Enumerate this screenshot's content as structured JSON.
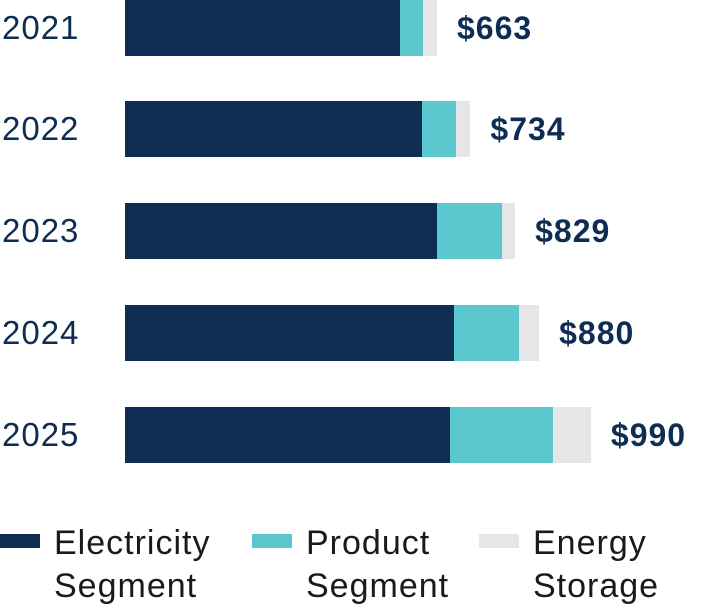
{
  "chart_data": {
    "type": "bar",
    "orientation": "horizontal",
    "stacked": true,
    "categories": [
      "2021",
      "2022",
      "2023",
      "2024",
      "2025"
    ],
    "series": [
      {
        "name": "Electricity Segment",
        "color": "#0f2d52",
        "values": [
          584,
          632,
          664,
          699,
          690
        ]
      },
      {
        "name": "Product Segment",
        "color": "#5bc8d0",
        "values": [
          49,
          72,
          138,
          138,
          219
        ]
      },
      {
        "name": "Energy Storage",
        "color": "#e6e6e6",
        "values": [
          30,
          30,
          27,
          43,
          81
        ]
      }
    ],
    "totals": [
      "$663",
      "$734",
      "$829",
      "$880",
      "$990"
    ],
    "legend": [
      "Electricity\nSegment",
      "Product\nSegment",
      "Energy\nStorage"
    ],
    "legend_placement": "bottom",
    "xlim": [
      0,
      1000
    ],
    "grid": false
  }
}
